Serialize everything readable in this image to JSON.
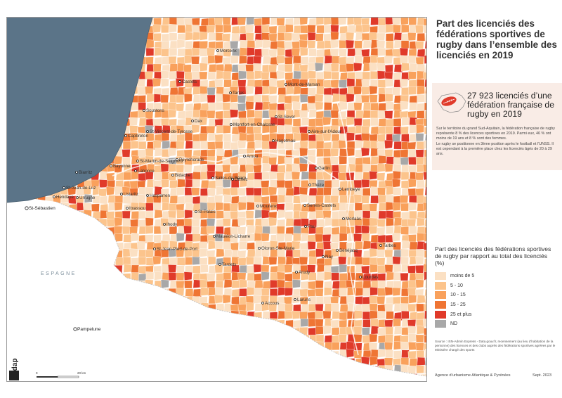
{
  "title": "Part des licenciés des fédérations sportives de rugby dans l’ensemble des licenciés en 2019",
  "highlight": {
    "headline": "27 923 licenciés d’une fédération française de rugby en 2019",
    "paragraph_1": "Sur le territoire du grand Sud-Aquitain, la fédération française de rugby représente 8 % des licences sportives en 2019. Parmi eux, 46 % ont moins de 19 ans et 8 % sont des femmes.",
    "paragraph_2": "Le rugby se positionne en 3ème position après le football et l’UNSS. Il est cependant à la première place chez les licenciés âgés de 20 à 29 ans."
  },
  "legend": {
    "title": "Part des licenciés des fédérations sportives de rugby par rapport au total des licenciés (%)",
    "classes": [
      {
        "label": "moins de 5",
        "color": "#fbe0c3"
      },
      {
        "label": "5 - 10",
        "color": "#fcc48c"
      },
      {
        "label": "10 - 15",
        "color": "#f9a15c"
      },
      {
        "label": "15 - 25",
        "color": "#ef7534"
      },
      {
        "label": "25 et plus",
        "color": "#e03a2a"
      },
      {
        "label": "ND",
        "color": "#a8a8a8"
      }
    ]
  },
  "map": {
    "sea_color": "#5b7488",
    "spain_label": "ESPAGNE",
    "scale_start": "0",
    "scale_end": "20 km",
    "places": [
      {
        "name": "Morcenx"
      },
      {
        "name": "Castets"
      },
      {
        "name": "Tartas"
      },
      {
        "name": "Mont-de-Marsan"
      },
      {
        "name": "Soustons"
      },
      {
        "name": "Dax"
      },
      {
        "name": "Montfort-en-Chalosse"
      },
      {
        "name": "St-Sever"
      },
      {
        "name": "St-Vincent-de-Tyrosse"
      },
      {
        "name": "Aire-sur-l'Adour"
      },
      {
        "name": "Capbreton"
      },
      {
        "name": "Hagetmau"
      },
      {
        "name": "St-Martin-de-Seignanx"
      },
      {
        "name": "Peyrehorade"
      },
      {
        "name": "Amou"
      },
      {
        "name": "Bayonne"
      },
      {
        "name": "Biarritz"
      },
      {
        "name": "Lahonce"
      },
      {
        "name": "Bidache"
      },
      {
        "name": "Salies-de-Béarn"
      },
      {
        "name": "Orthez"
      },
      {
        "name": "Garlin"
      },
      {
        "name": "St-Jean-de-Luz"
      },
      {
        "name": "Thèze"
      },
      {
        "name": "Lembeye"
      },
      {
        "name": "Hendaye"
      },
      {
        "name": "Urrugne"
      },
      {
        "name": "Ustaritz"
      },
      {
        "name": "Hasparren"
      },
      {
        "name": "Itxassou"
      },
      {
        "name": "Mourenx"
      },
      {
        "name": "Serres-Castets"
      },
      {
        "name": "St-Sébastien"
      },
      {
        "name": "St-Palais"
      },
      {
        "name": "Morlaàs"
      },
      {
        "name": "Ihody"
      },
      {
        "name": "Pau"
      },
      {
        "name": "Mauléon-Licharre"
      },
      {
        "name": "St-Jean-Pied-de-Port"
      },
      {
        "name": "Oloron-Ste-Marie"
      },
      {
        "name": "Tardets"
      },
      {
        "name": "Nay"
      },
      {
        "name": "Bénéjacq"
      },
      {
        "name": "Tarbes"
      },
      {
        "name": "Arudy"
      },
      {
        "name": "Lourdes"
      },
      {
        "name": "Accous"
      },
      {
        "name": "Laruns"
      },
      {
        "name": "Pampelune"
      }
    ]
  },
  "source": "Source : ISN-Admin Express - Data.gouv.fr, recensement (au lieu d’habitation de la personne) des licences et des clubs auprès des fédérations sportives agréées par le Ministère chargé des sports",
  "footer": {
    "agency": "Agence d’urbanisme Atlantique & Pyrénées",
    "date": "Sept. 2023",
    "logo": "audap"
  }
}
